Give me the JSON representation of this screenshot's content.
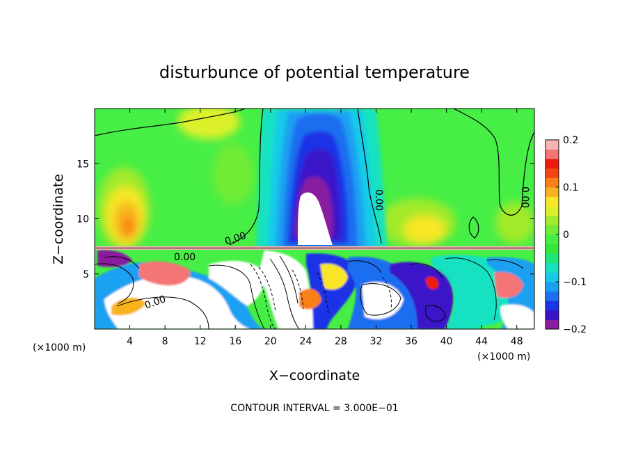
{
  "chart_data": {
    "type": "heatmap",
    "title": "disturbunce of potential temperature",
    "xlabel": "X−coordinate",
    "ylabel": "Z−coordinate",
    "x_unit": "(×1000 m)",
    "x_unit_right": "(×1000 m)",
    "xlim": [
      0,
      50
    ],
    "ylim": [
      0,
      20
    ],
    "x_ticks": [
      4,
      8,
      12,
      16,
      20,
      24,
      28,
      32,
      36,
      40,
      44,
      48
    ],
    "x_tick_labels": [
      "4",
      "8",
      "12",
      "16",
      "20",
      "24",
      "28",
      "32",
      "36",
      "40",
      "44",
      "48"
    ],
    "y_ticks": [
      5,
      10,
      15
    ],
    "y_tick_labels": [
      "5",
      "10",
      "15"
    ],
    "contour_label": "0.00",
    "contour_interval_text": "CONTOUR INTERVAL = 3.000E−01",
    "colorbar": {
      "range": [
        -0.2,
        0.2
      ],
      "tick_values": [
        0.2,
        0.1,
        0,
        -0.1,
        -0.2
      ],
      "tick_labels": [
        "0.2",
        "0.1",
        "0",
        "−0.1",
        "−0.2"
      ],
      "colors": [
        "#8a1ea0",
        "#3a12c8",
        "#1c32e6",
        "#1e6ef0",
        "#1aa0f2",
        "#18cae8",
        "#16e2c2",
        "#1ce87a",
        "#34e63a",
        "#46ee46",
        "#70ec36",
        "#a2ea2c",
        "#dcf02a",
        "#f8e628",
        "#f8b41e",
        "#f88018",
        "#f44414",
        "#ee1c10",
        "#f47474",
        "#f8b4b4"
      ]
    },
    "field_regions": [
      {
        "region": "upper layer background (z above 7.3)",
        "value": 0.0
      },
      {
        "region": "upper layer, warm patch near x=4-6, z=8-12",
        "value": 0.12
      },
      {
        "region": "upper layer, warm patch near x=38-42, z=8-10",
        "value": 0.1
      },
      {
        "region": "central cold column near x=20-30, z=7.3-20",
        "value": -0.18
      },
      {
        "region": "cold core near x=24, z=10-13",
        "value": -0.2
      },
      {
        "region": "lower layer (z below 7.3) turbulent field",
        "value": 0.0
      }
    ]
  }
}
